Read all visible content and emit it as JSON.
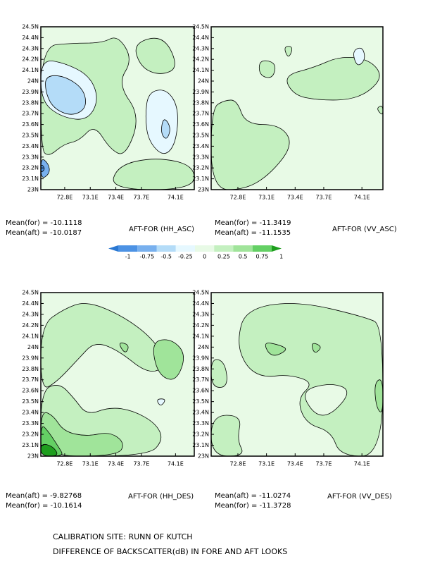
{
  "chart_data": [
    {
      "type": "contour",
      "title": "AFT-FOR (HH_ASC)",
      "annotations": [
        "Mean(for) = -10.1118",
        "Mean(aft) = -10.0187"
      ],
      "xlim": [
        72.52,
        74.32
      ],
      "ylim": [
        23,
        24.5
      ],
      "xticks": [
        {
          "value": 72.8,
          "label": "72.8E"
        },
        {
          "value": 73.1,
          "label": "73.1E"
        },
        {
          "value": 73.4,
          "label": "73.4E"
        },
        {
          "value": 73.7,
          "label": "73.7E"
        },
        {
          "value": 74.1,
          "label": "74.1E"
        }
      ],
      "yticks": [
        {
          "value": 23,
          "label": "23N"
        },
        {
          "value": 23.1,
          "label": "23.1N"
        },
        {
          "value": 23.2,
          "label": "23.2N"
        },
        {
          "value": 23.3,
          "label": "23.3N"
        },
        {
          "value": 23.4,
          "label": "23.4N"
        },
        {
          "value": 23.5,
          "label": "23.5N"
        },
        {
          "value": 23.6,
          "label": "23.6N"
        },
        {
          "value": 23.7,
          "label": "23.7N"
        },
        {
          "value": 23.8,
          "label": "23.8N"
        },
        {
          "value": 23.9,
          "label": "23.9N"
        },
        {
          "value": 24,
          "label": "24N"
        },
        {
          "value": 24.1,
          "label": "24.1N"
        },
        {
          "value": 24.2,
          "label": "24.2N"
        },
        {
          "value": 24.3,
          "label": "24.3N"
        },
        {
          "value": 24.4,
          "label": "24.4N"
        },
        {
          "value": 24.5,
          "label": "24.5N"
        }
      ]
    },
    {
      "type": "contour",
      "title": "AFT-FOR (VV_ASC)",
      "annotations": [
        "Mean(for) = -11.3419",
        "Mean(aft) = -11.1535"
      ],
      "xlim": [
        72.52,
        74.32
      ],
      "ylim": [
        23,
        24.5
      ],
      "xticks": [
        {
          "value": 72.8,
          "label": "72.8E"
        },
        {
          "value": 73.1,
          "label": "73.1E"
        },
        {
          "value": 73.4,
          "label": "73.4E"
        },
        {
          "value": 73.7,
          "label": "73.7E"
        },
        {
          "value": 74.1,
          "label": "74.1E"
        }
      ],
      "yticks": [
        {
          "value": 23,
          "label": "23N"
        },
        {
          "value": 23.1,
          "label": "23.1N"
        },
        {
          "value": 23.2,
          "label": "23.2N"
        },
        {
          "value": 23.3,
          "label": "23.3N"
        },
        {
          "value": 23.4,
          "label": "23.4N"
        },
        {
          "value": 23.5,
          "label": "23.5N"
        },
        {
          "value": 23.6,
          "label": "23.6N"
        },
        {
          "value": 23.7,
          "label": "23.7N"
        },
        {
          "value": 23.8,
          "label": "23.8N"
        },
        {
          "value": 23.9,
          "label": "23.9N"
        },
        {
          "value": 24,
          "label": "24N"
        },
        {
          "value": 24.1,
          "label": "24.1N"
        },
        {
          "value": 24.2,
          "label": "24.2N"
        },
        {
          "value": 24.3,
          "label": "24.3N"
        },
        {
          "value": 24.4,
          "label": "24.4N"
        },
        {
          "value": 24.5,
          "label": "24.5N"
        }
      ]
    },
    {
      "type": "contour",
      "title": "AFT-FOR (HH_DES)",
      "annotations": [
        "Mean(aft) = -9.82768",
        "Mean(for) = -10.1614"
      ],
      "xlim": [
        72.52,
        74.32
      ],
      "ylim": [
        23,
        24.5
      ],
      "xticks": [
        {
          "value": 72.8,
          "label": "72.8E"
        },
        {
          "value": 73.1,
          "label": "73.1E"
        },
        {
          "value": 73.4,
          "label": "73.4E"
        },
        {
          "value": 73.7,
          "label": "73.7E"
        },
        {
          "value": 74.1,
          "label": "74.1E"
        }
      ],
      "yticks": [
        {
          "value": 23,
          "label": "23N"
        },
        {
          "value": 23.1,
          "label": "23.1N"
        },
        {
          "value": 23.2,
          "label": "23.2N"
        },
        {
          "value": 23.3,
          "label": "23.3N"
        },
        {
          "value": 23.4,
          "label": "23.4N"
        },
        {
          "value": 23.5,
          "label": "23.5N"
        },
        {
          "value": 23.6,
          "label": "23.6N"
        },
        {
          "value": 23.7,
          "label": "23.7N"
        },
        {
          "value": 23.8,
          "label": "23.8N"
        },
        {
          "value": 23.9,
          "label": "23.9N"
        },
        {
          "value": 24,
          "label": "24N"
        },
        {
          "value": 24.1,
          "label": "24.1N"
        },
        {
          "value": 24.2,
          "label": "24.2N"
        },
        {
          "value": 24.3,
          "label": "24.3N"
        },
        {
          "value": 24.4,
          "label": "24.4N"
        },
        {
          "value": 24.5,
          "label": "24.5N"
        }
      ]
    },
    {
      "type": "contour",
      "title": "AFT-FOR (VV_DES)",
      "annotations": [
        "Mean(aft) = -11.0274",
        "Mean(for) = -11.3728"
      ],
      "xlim": [
        72.52,
        74.32
      ],
      "ylim": [
        23,
        24.5
      ],
      "xticks": [
        {
          "value": 72.8,
          "label": "72.8E"
        },
        {
          "value": 73.1,
          "label": "73.1E"
        },
        {
          "value": 73.4,
          "label": "73.4E"
        },
        {
          "value": 73.7,
          "label": "73.7E"
        },
        {
          "value": 74.1,
          "label": "74.1E"
        }
      ],
      "yticks": [
        {
          "value": 23,
          "label": "23N"
        },
        {
          "value": 23.1,
          "label": "23.1N"
        },
        {
          "value": 23.2,
          "label": "23.2N"
        },
        {
          "value": 23.3,
          "label": "23.3N"
        },
        {
          "value": 23.4,
          "label": "23.4N"
        },
        {
          "value": 23.5,
          "label": "23.5N"
        },
        {
          "value": 23.6,
          "label": "23.6N"
        },
        {
          "value": 23.7,
          "label": "23.7N"
        },
        {
          "value": 23.8,
          "label": "23.8N"
        },
        {
          "value": 23.9,
          "label": "23.9N"
        },
        {
          "value": 24,
          "label": "24N"
        },
        {
          "value": 24.1,
          "label": "24.1N"
        },
        {
          "value": 24.2,
          "label": "24.2N"
        },
        {
          "value": 24.3,
          "label": "24.3N"
        },
        {
          "value": 24.4,
          "label": "24.4N"
        },
        {
          "value": 24.5,
          "label": "24.5N"
        }
      ]
    }
  ],
  "legend": {
    "levels": [
      -1,
      -0.75,
      -0.5,
      -0.25,
      0,
      0.25,
      0.5,
      0.75,
      1
    ],
    "colors": [
      "#2a78d2",
      "#4c92e4",
      "#78b0ee",
      "#b4dcf8",
      "#e6f8ff",
      "#e8fae6",
      "#c4f0c0",
      "#a0e49a",
      "#64d064",
      "#1e9e1e"
    ]
  },
  "footer": [
    "CALIBRATION SITE: RUNN OF KUTCH",
    "DIFFERENCE OF BACKSCATTER(dB) IN FORE AND AFT LOOKS"
  ]
}
